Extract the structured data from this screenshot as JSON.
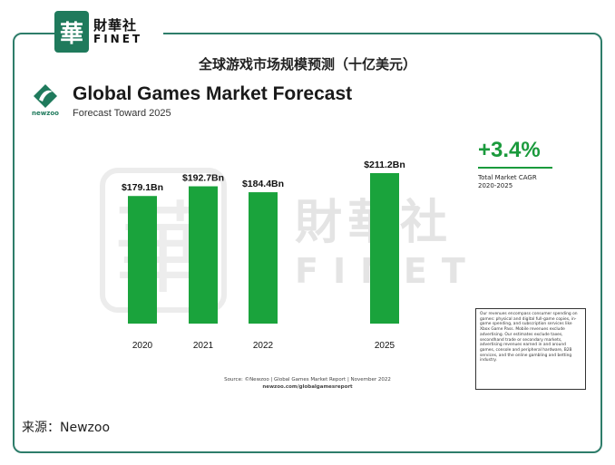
{
  "header": {
    "logo_glyph": "華",
    "logo_cn": "財華社",
    "logo_en": "FINET"
  },
  "page_title": "全球游戏市场规模预测（十亿美元）",
  "newzoo": {
    "logo_name": "newzoo",
    "title": "Global Games Market Forecast",
    "subtitle": "Forecast Toward 2025"
  },
  "chart_data": {
    "type": "bar",
    "categories": [
      "2020",
      "2021",
      "2022",
      "2025"
    ],
    "values": [
      179.1,
      192.7,
      184.4,
      211.2
    ],
    "value_labels": [
      "$179.1Bn",
      "$192.7Bn",
      "$184.4Bn",
      "$211.2Bn"
    ],
    "bar_color": "#1aa33c",
    "title": "Global Games Market Forecast",
    "subtitle": "Forecast Toward 2025",
    "xlabel": "",
    "ylabel": "",
    "grid": false,
    "cagr": "+3.4%",
    "cagr_label_1": "Total Market CAGR",
    "cagr_label_2": "2020-2025"
  },
  "note_text": "Our revenues encompass consumer spending on games: physical and digital full-game copies, in-game spending, and subscription services like Xbox Game Pass. Mobile revenues exclude advertising. Our estimates exclude taxes, secondhand trade or secondary markets, advertising revenues earned in and around games, console and peripheral hardware, B2B services, and the online gambling and betting industry.",
  "source_line_1": "Source: ©Newzoo | Global Games Market Report | November 2022",
  "source_line_2": "newzoo.com/globalgamesreport",
  "watermark": {
    "glyph": "華",
    "cn": "財華社",
    "en": "FINET"
  },
  "footer_source": "来源：Newzoo",
  "colors": {
    "accent_green": "#1a9a3c",
    "frame": "#2e7d6a",
    "newzoo_green": "#1f7a5c"
  }
}
